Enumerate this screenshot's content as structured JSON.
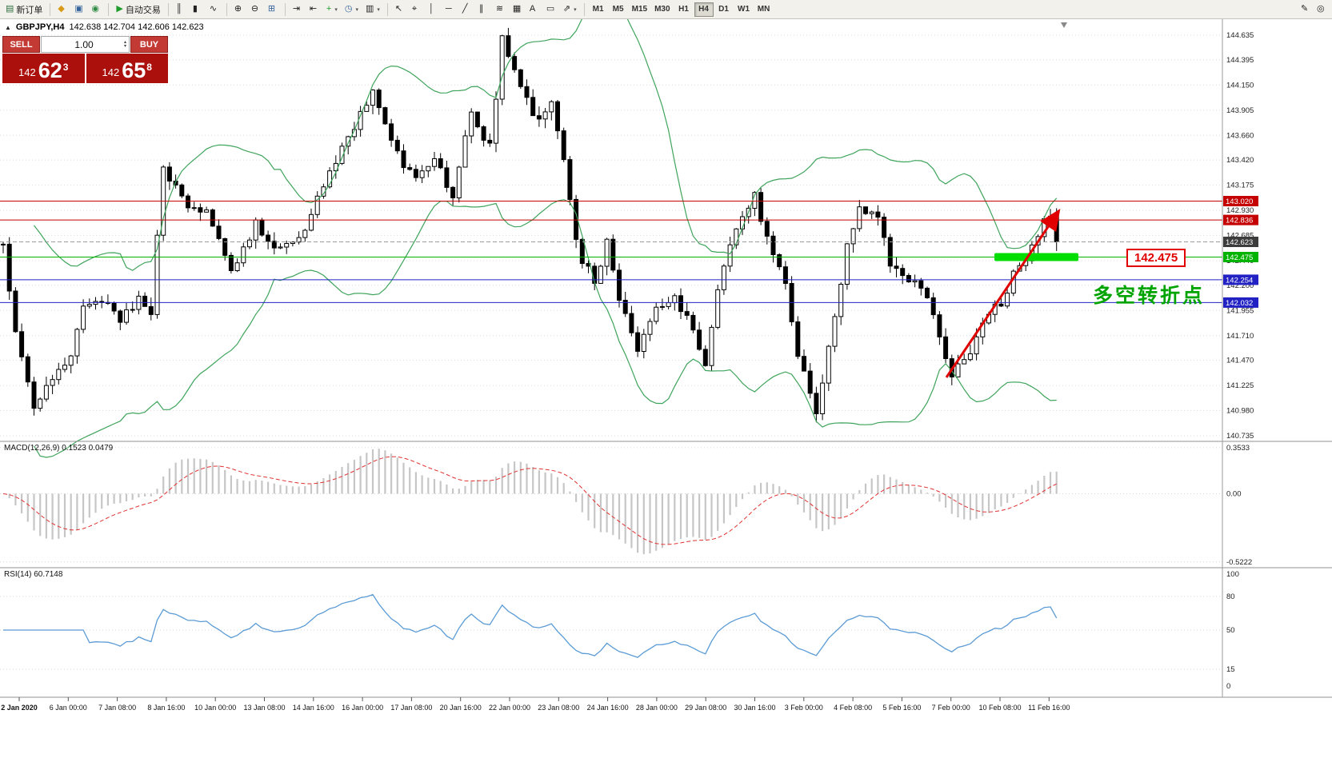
{
  "toolbar": {
    "caret_glyph": "▾",
    "groups": [
      {
        "items": [
          {
            "name": "new-order-button",
            "glyph": "▤",
            "glyph_color": "#2f6f3f",
            "label": "新订单"
          }
        ]
      },
      {
        "items": [
          {
            "name": "market-watch-button",
            "glyph": "◆",
            "glyph_color": "#d99b16"
          },
          {
            "name": "data-window-button",
            "glyph": "▣",
            "glyph_color": "#35639c"
          },
          {
            "name": "navigator-button",
            "glyph": "◉",
            "glyph_color": "#2e8b44"
          }
        ]
      },
      {
        "items": [
          {
            "name": "auto-trading-button",
            "glyph": "▶",
            "glyph_color": "#1f9d2c",
            "label": "自动交易"
          }
        ]
      },
      {
        "items": [
          {
            "name": "bar-chart-button",
            "glyph": "║"
          },
          {
            "name": "candlestick-chart-button",
            "glyph": "▮"
          },
          {
            "name": "line-chart-button",
            "glyph": "∿"
          }
        ]
      },
      {
        "items": [
          {
            "name": "zoom-in-button",
            "glyph": "⊕"
          },
          {
            "name": "zoom-out-button",
            "glyph": "⊖"
          },
          {
            "name": "tile-windows-button",
            "glyph": "⊞",
            "glyph_color": "#35639c"
          }
        ]
      },
      {
        "items": [
          {
            "name": "auto-scroll-button",
            "glyph": "⇥"
          },
          {
            "name": "chart-shift-button",
            "glyph": "⇤"
          },
          {
            "name": "indicators-button",
            "glyph": "+",
            "glyph_color": "#1f9d2c",
            "caret": true
          },
          {
            "name": "periods-button",
            "glyph": "◷",
            "glyph_color": "#35639c",
            "caret": true
          },
          {
            "name": "templates-button",
            "glyph": "▥",
            "caret": true
          }
        ]
      },
      {
        "items": [
          {
            "name": "cursor-tool-button",
            "glyph": "↖"
          },
          {
            "name": "crosshair-tool-button",
            "glyph": "⌖"
          },
          {
            "name": "vertical-line-tool-button",
            "glyph": "│"
          },
          {
            "name": "horizontal-line-tool-button",
            "glyph": "─"
          },
          {
            "name": "trendline-tool-button",
            "glyph": "╱"
          },
          {
            "name": "channel-tool-button",
            "glyph": "∥"
          },
          {
            "name": "fibonacci-tool-button",
            "glyph": "≋"
          },
          {
            "name": "shapes-tool-button",
            "glyph": "▦"
          },
          {
            "name": "text-tool-button",
            "glyph": "A"
          },
          {
            "name": "label-tool-button",
            "glyph": "▭"
          },
          {
            "name": "arrows-tool-button",
            "glyph": "⇗",
            "caret": true
          }
        ]
      }
    ],
    "timeframes": [
      "M1",
      "M5",
      "M15",
      "M30",
      "H1",
      "H4",
      "D1",
      "W1",
      "MN"
    ],
    "active_timeframe": "H4",
    "right_icons": [
      {
        "name": "edit-button",
        "glyph": "✎"
      },
      {
        "name": "search-button",
        "glyph": "◎"
      }
    ]
  },
  "symbol_bar": {
    "icon": "▲",
    "symbol": "GBPJPY,H4",
    "ohlc": "142.638 142.704 142.606 142.623"
  },
  "trade_panel": {
    "sell_label": "SELL",
    "buy_label": "BUY",
    "volume": "1.00",
    "up_glyph": "▴",
    "down_glyph": "▾",
    "sell_price_main": "142",
    "sell_price_big": "62",
    "sell_price_sup": "3",
    "buy_price_main": "142",
    "buy_price_big": "65",
    "buy_price_sup": "8"
  },
  "price_scale": [
    "144.635",
    "144.395",
    "144.150",
    "143.905",
    "143.660",
    "143.420",
    "143.175",
    "142.930",
    "142.685",
    "142.440",
    "142.200",
    "141.955",
    "141.710",
    "141.470",
    "141.225",
    "140.980",
    "140.735"
  ],
  "price_lines": [
    {
      "name": "resistance-line-1",
      "label": "143.020",
      "price": 143.02,
      "color": "#c40000",
      "style": "solid",
      "tag_bg": "#c40000"
    },
    {
      "name": "resistance-line-2",
      "label": "142.836",
      "price": 142.836,
      "color": "#c40000",
      "style": "solid",
      "tag_bg": "#c40000"
    },
    {
      "name": "current-price-line",
      "label": "142.623",
      "price": 142.623,
      "color": "#9a9a9a",
      "style": "dash",
      "tag_bg": "#3c3c3c"
    },
    {
      "name": "support-line-green",
      "label": "142.475",
      "price": 142.475,
      "color": "#00b300",
      "style": "solid",
      "tag_bg": "#00b300"
    },
    {
      "name": "support-line-blue-1",
      "label": "142.254",
      "price": 142.254,
      "color": "#2222c4",
      "style": "solid",
      "tag_bg": "#2222c4"
    },
    {
      "name": "support-line-blue-2",
      "label": "142.032",
      "price": 142.032,
      "color": "#2222c4",
      "style": "solid",
      "tag_bg": "#2222c4"
    }
  ],
  "annotations": {
    "support_price_label": "142.475",
    "turning_point_text": "多空转折点",
    "highlight_color": "#00dd00",
    "arrow_color": "#e00000"
  },
  "macd": {
    "label": "MACD(12,26,9) 0.1523 0.0479",
    "scale": [
      "0.3533",
      "0.00",
      "-0.5222"
    ]
  },
  "rsi": {
    "label": "RSI(14) 60.7148",
    "scale": [
      "100",
      "80",
      "50",
      "15",
      "0"
    ],
    "levels": [
      80,
      50,
      15
    ]
  },
  "time_axis": [
    "2 Jan 2020",
    "6 Jan 00:00",
    "7 Jan 08:00",
    "8 Jan 16:00",
    "10 Jan 00:00",
    "13 Jan 08:00",
    "14 Jan 16:00",
    "16 Jan 00:00",
    "17 Jan 08:00",
    "20 Jan 16:00",
    "22 Jan 00:00",
    "23 Jan 08:00",
    "24 Jan 16:00",
    "28 Jan 00:00",
    "29 Jan 08:00",
    "30 Jan 16:00",
    "3 Feb 00:00",
    "4 Feb 08:00",
    "5 Feb 16:00",
    "7 Feb 00:00",
    "10 Feb 08:00",
    "11 Feb 16:00"
  ],
  "chart_data": {
    "type": "candlestick",
    "symbol": "GBPJPY",
    "timeframe": "H4",
    "bars": 172,
    "last_close": 142.623,
    "current_ohlc": {
      "open": 142.638,
      "high": 142.704,
      "low": 142.606,
      "close": 142.623
    },
    "price_range": [
      140.735,
      144.635
    ],
    "overlays": {
      "bollinger": {
        "period": 20,
        "deviation": 2
      }
    },
    "indicators": {
      "macd": [
        12,
        26,
        9
      ],
      "rsi": [
        14
      ]
    },
    "price_waypoints": [
      [
        0,
        142.6
      ],
      [
        2,
        141.7
      ],
      [
        5,
        141.0
      ],
      [
        7,
        141.2
      ],
      [
        11,
        141.55
      ],
      [
        13,
        141.95
      ],
      [
        16,
        142.05
      ],
      [
        19,
        141.85
      ],
      [
        22,
        142.1
      ],
      [
        24,
        141.95
      ],
      [
        26,
        143.35
      ],
      [
        30,
        143.0
      ],
      [
        33,
        142.9
      ],
      [
        37,
        142.35
      ],
      [
        41,
        142.8
      ],
      [
        44,
        142.55
      ],
      [
        48,
        142.65
      ],
      [
        51,
        143.05
      ],
      [
        55,
        143.55
      ],
      [
        60,
        144.1
      ],
      [
        63,
        143.6
      ],
      [
        67,
        143.2
      ],
      [
        70,
        143.4
      ],
      [
        73,
        143.1
      ],
      [
        76,
        143.85
      ],
      [
        79,
        143.55
      ],
      [
        81,
        144.58
      ],
      [
        84,
        144.1
      ],
      [
        87,
        143.8
      ],
      [
        89,
        143.95
      ],
      [
        91,
        143.45
      ],
      [
        93,
        142.6
      ],
      [
        96,
        142.2
      ],
      [
        98,
        142.65
      ],
      [
        100,
        142.05
      ],
      [
        103,
        141.55
      ],
      [
        106,
        141.95
      ],
      [
        109,
        142.1
      ],
      [
        112,
        141.75
      ],
      [
        114,
        141.4
      ],
      [
        116,
        142.2
      ],
      [
        120,
        142.9
      ],
      [
        122,
        143.05
      ],
      [
        124,
        142.7
      ],
      [
        127,
        142.2
      ],
      [
        129,
        141.5
      ],
      [
        132,
        140.98
      ],
      [
        135,
        141.85
      ],
      [
        137,
        142.6
      ],
      [
        139,
        143.0
      ],
      [
        142,
        142.85
      ],
      [
        144,
        142.4
      ],
      [
        147,
        142.25
      ],
      [
        150,
        142.1
      ],
      [
        152,
        141.65
      ],
      [
        154,
        141.32
      ],
      [
        157,
        141.55
      ],
      [
        159,
        141.8
      ],
      [
        162,
        142.05
      ],
      [
        164,
        142.3
      ],
      [
        167,
        142.55
      ],
      [
        169,
        142.8
      ],
      [
        170,
        142.9
      ],
      [
        171,
        142.62
      ]
    ]
  }
}
